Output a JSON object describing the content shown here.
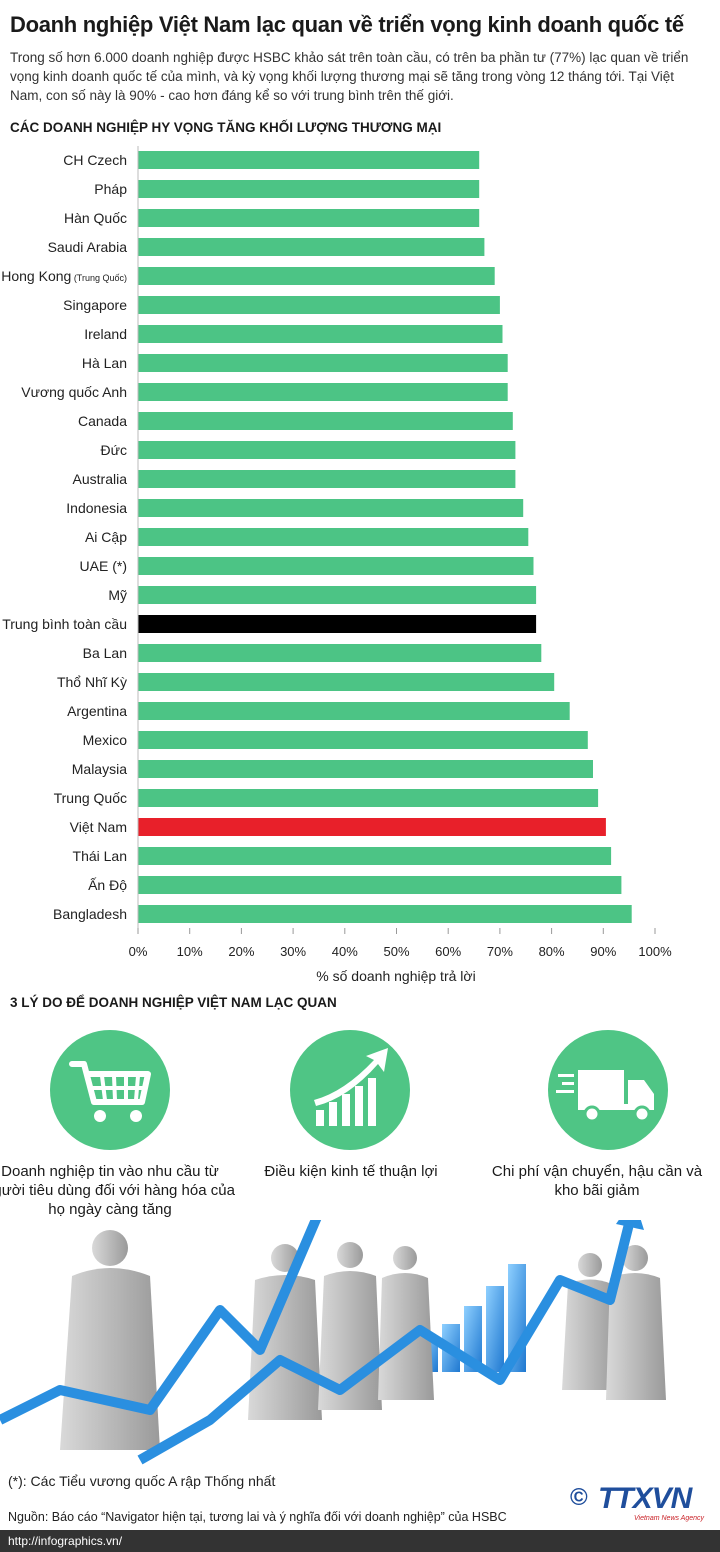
{
  "title": "Doanh nghiệp Việt Nam lạc quan về triển vọng kinh doanh quốc tế",
  "intro": "Trong số hơn 6.000 doanh nghiệp được HSBC khảo sát trên toàn cầu, có trên ba phần tư (77%) lạc quan về triển vọng kinh doanh quốc tế của mình, và kỳ vọng khối lượng thương mại sẽ tăng trong vòng 12 tháng tới. Tại Việt Nam, con số này là 90% - cao hơn đáng kể so với trung bình trên thế giới.",
  "section1_heading": "CÁC DOANH NGHIỆP HY VỌNG TĂNG KHỐI LƯỢNG THƯƠNG MẠI",
  "colors": {
    "bar": "#4cc485",
    "average": "#000000",
    "vietnam": "#e8202a",
    "accent": "#1f8fd6"
  },
  "chart_data": {
    "type": "bar",
    "orientation": "horizontal",
    "title": "CÁC DOANH NGHIỆP HY VỌNG TĂNG KHỐI LƯỢNG THƯƠNG MẠI",
    "xlabel": "% số doanh nghiệp trả lời",
    "xlim": [
      0,
      100
    ],
    "xticks": [
      "0%",
      "10%",
      "20%",
      "30%",
      "40%",
      "50%",
      "60%",
      "70%",
      "80%",
      "90%",
      "100%"
    ],
    "categories": [
      {
        "label": "CH Czech",
        "note": "",
        "value": 66,
        "highlight": ""
      },
      {
        "label": "Pháp",
        "note": "",
        "value": 66,
        "highlight": ""
      },
      {
        "label": "Hàn Quốc",
        "note": "",
        "value": 66,
        "highlight": ""
      },
      {
        "label": "Saudi Arabia",
        "note": "",
        "value": 67,
        "highlight": ""
      },
      {
        "label": "Hong Kong",
        "note": "(Trung Quốc)",
        "value": 69,
        "highlight": ""
      },
      {
        "label": "Singapore",
        "note": "",
        "value": 70,
        "highlight": ""
      },
      {
        "label": "Ireland",
        "note": "",
        "value": 70.5,
        "highlight": ""
      },
      {
        "label": "Hà Lan",
        "note": "",
        "value": 71.5,
        "highlight": ""
      },
      {
        "label": "Vương quốc Anh",
        "note": "",
        "value": 71.5,
        "highlight": ""
      },
      {
        "label": "Canada",
        "note": "",
        "value": 72.5,
        "highlight": ""
      },
      {
        "label": "Đức",
        "note": "",
        "value": 73,
        "highlight": ""
      },
      {
        "label": "Australia",
        "note": "",
        "value": 73,
        "highlight": ""
      },
      {
        "label": "Indonesia",
        "note": "",
        "value": 74.5,
        "highlight": ""
      },
      {
        "label": "Ai Cập",
        "note": "",
        "value": 75.5,
        "highlight": ""
      },
      {
        "label": "UAE (*)",
        "note": "",
        "value": 76.5,
        "highlight": ""
      },
      {
        "label": "Mỹ",
        "note": "",
        "value": 77,
        "highlight": ""
      },
      {
        "label": "Trung bình toàn cầu",
        "note": "",
        "value": 77,
        "highlight": "average"
      },
      {
        "label": "Ba Lan",
        "note": "",
        "value": 78,
        "highlight": ""
      },
      {
        "label": "Thổ Nhĩ Kỳ",
        "note": "",
        "value": 80.5,
        "highlight": ""
      },
      {
        "label": "Argentina",
        "note": "",
        "value": 83.5,
        "highlight": ""
      },
      {
        "label": "Mexico",
        "note": "",
        "value": 87,
        "highlight": ""
      },
      {
        "label": "Malaysia",
        "note": "",
        "value": 88,
        "highlight": ""
      },
      {
        "label": "Trung Quốc",
        "note": "",
        "value": 89,
        "highlight": ""
      },
      {
        "label": "Việt Nam",
        "note": "",
        "value": 90.5,
        "highlight": "vietnam"
      },
      {
        "label": "Thái Lan",
        "note": "",
        "value": 91.5,
        "highlight": ""
      },
      {
        "label": "Ấn Độ",
        "note": "",
        "value": 93.5,
        "highlight": ""
      },
      {
        "label": "Bangladesh",
        "note": "",
        "value": 95.5,
        "highlight": ""
      }
    ]
  },
  "section2_heading": "3 LÝ DO ĐỂ DOANH NGHIỆP VIỆT NAM LẠC QUAN",
  "reasons": [
    {
      "icon": "shopping-cart-icon",
      "text": "Doanh nghiệp tin vào nhu cầu từ người tiêu dùng đối với hàng hóa của họ ngày càng tăng"
    },
    {
      "icon": "growth-chart-icon",
      "text": "Điều kiện kinh tế thuận lợi"
    },
    {
      "icon": "delivery-truck-icon",
      "text": "Chi phí vận chuyển, hậu cần và kho bãi giảm"
    }
  ],
  "footnote": "(*): Các Tiểu vương quốc A rập Thống nhất",
  "source": "Nguồn: Báo cáo “Navigator hiện tại, tương lai và ý nghĩa đối với doanh nghiệp” của HSBC",
  "url": "http://infographics.vn/",
  "logo": {
    "copyright": "©",
    "name": "TTXVN",
    "subtitle": "Vietnam News Agency"
  }
}
